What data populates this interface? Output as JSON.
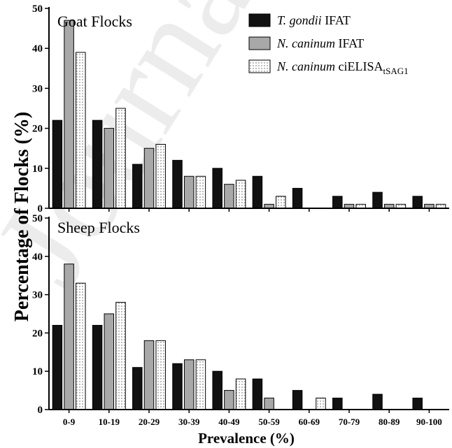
{
  "watermark": "Journal",
  "chart_data": {
    "type": "bar",
    "ylabel": "Percentage of Flocks (%)",
    "xlabel": "Prevalence (%)",
    "categories": [
      "0-9",
      "10-19",
      "20-29",
      "30-39",
      "40-49",
      "50-59",
      "60-69",
      "70-79",
      "80-89",
      "90-100"
    ],
    "legend": {
      "placement": "top-right",
      "entries": [
        {
          "italic": "T. gondii",
          "text": " IFAT",
          "sub": ""
        },
        {
          "italic": "N. caninum",
          "text": " IFAT",
          "sub": ""
        },
        {
          "italic": "N. caninum",
          "text": " ciELISA",
          "sub": "tSAG1"
        }
      ]
    },
    "series_styles": [
      {
        "fill": "#111111",
        "pattern": "solid"
      },
      {
        "fill": "#a8a8a8",
        "pattern": "solid"
      },
      {
        "fill": "#ffffff",
        "pattern": "dots"
      }
    ],
    "panels": [
      {
        "title": "Goat Flocks",
        "ylim": [
          0,
          50
        ],
        "yticks": [
          0,
          10,
          20,
          30,
          40,
          50
        ],
        "series": [
          {
            "values": [
              22,
              22,
              11,
              12,
              10,
              8,
              5,
              3,
              4,
              3
            ]
          },
          {
            "values": [
              47,
              20,
              15,
              8,
              6,
              1,
              0,
              1,
              1,
              1
            ]
          },
          {
            "values": [
              39,
              25,
              16,
              8,
              7,
              3,
              0,
              1,
              1,
              1
            ]
          }
        ]
      },
      {
        "title": "Sheep Flocks",
        "ylim": [
          0,
          50
        ],
        "yticks": [
          0,
          10,
          20,
          30,
          40,
          50
        ],
        "series": [
          {
            "values": [
              22,
              22,
              11,
              12,
              10,
              8,
              5,
              3,
              4,
              3
            ]
          },
          {
            "values": [
              38,
              25,
              18,
              13,
              5,
              3,
              0,
              0,
              0,
              0
            ]
          },
          {
            "values": [
              33,
              28,
              18,
              13,
              8,
              0,
              3,
              0,
              0,
              0
            ]
          }
        ]
      }
    ]
  }
}
